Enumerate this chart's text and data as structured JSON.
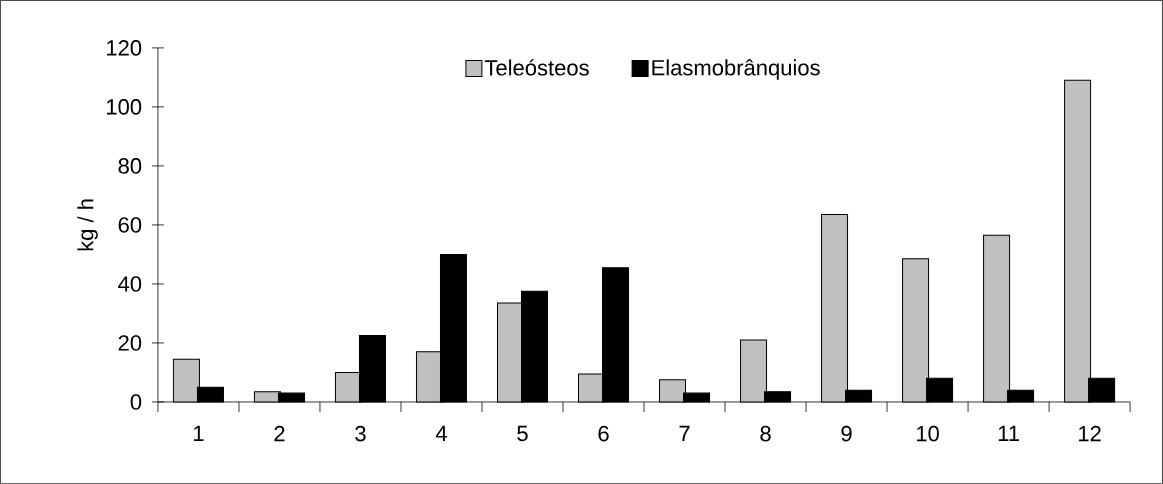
{
  "chart_data": {
    "type": "bar",
    "ylabel": "kg / h",
    "categories": [
      "1",
      "2",
      "3",
      "4",
      "5",
      "6",
      "7",
      "8",
      "9",
      "10",
      "11",
      "12"
    ],
    "series": [
      {
        "name": "Teleósteos",
        "color": "#c0c0c0",
        "values": [
          14.5,
          3.5,
          10,
          17,
          33.5,
          9.5,
          7.5,
          21,
          63.5,
          48.5,
          56.5,
          109
        ]
      },
      {
        "name": "Elasmobrânquios",
        "color": "#000000",
        "values": [
          5,
          3,
          22.5,
          50,
          37.5,
          45.5,
          3,
          3.5,
          4,
          8,
          4,
          8
        ]
      }
    ],
    "ylim": [
      0,
      120
    ],
    "yticks": [
      0,
      20,
      40,
      60,
      80,
      100,
      120
    ],
    "grid": false,
    "legend": "top"
  }
}
